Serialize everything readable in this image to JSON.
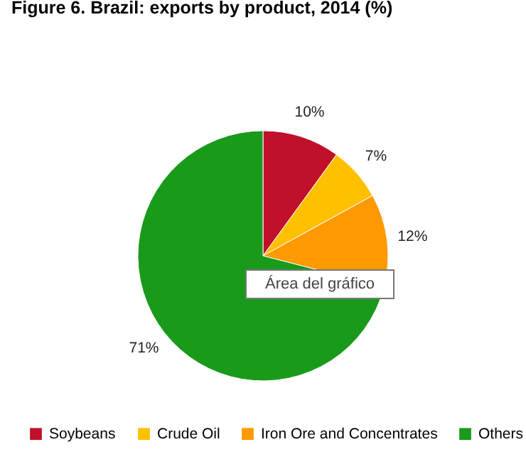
{
  "chart_data": {
    "type": "pie",
    "title": "Figure 6. Brazil: exports by product, 2014 (%)",
    "categories": [
      "Soybeans",
      "Crude Oil",
      "Iron Ore and Concentrates",
      "Others"
    ],
    "values": [
      10,
      7,
      12,
      71
    ],
    "colors": [
      "#c0102a",
      "#ffc000",
      "#ff9900",
      "#1a9a1a"
    ],
    "value_labels": [
      "10%",
      "7%",
      "12%",
      "71%"
    ],
    "legend": "bottom",
    "annotations": [
      "Área del gráfico"
    ]
  }
}
